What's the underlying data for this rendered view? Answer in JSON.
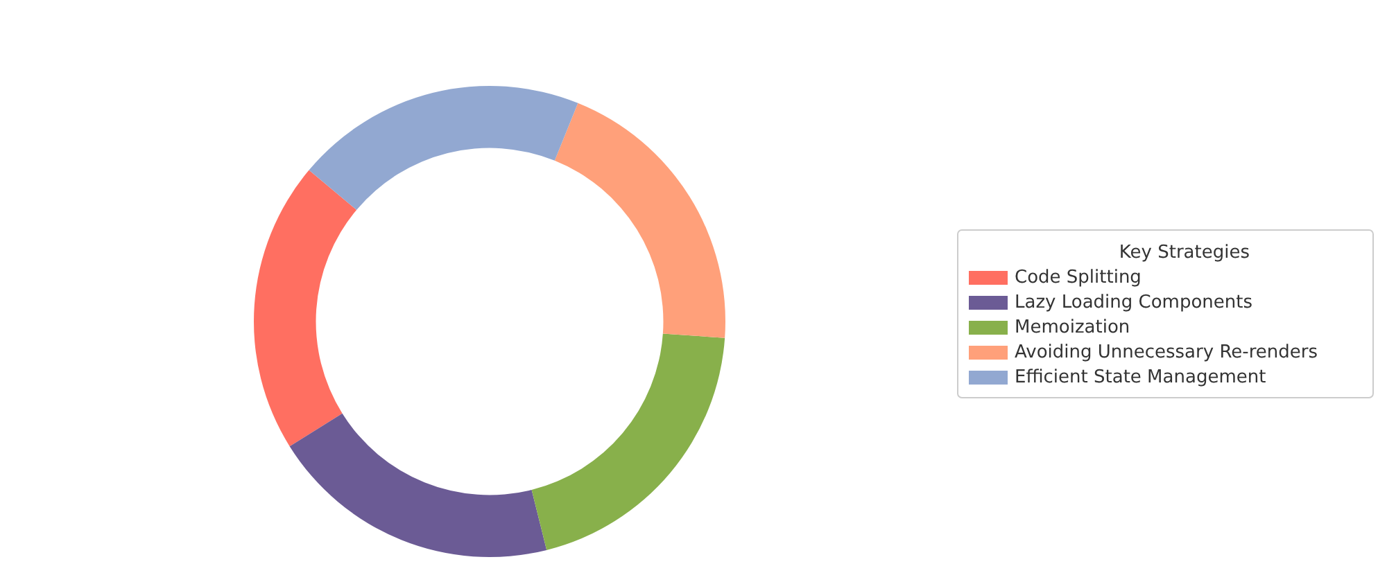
{
  "chart_data": {
    "type": "donut",
    "legend_title": "Key Strategies",
    "legend": "right",
    "categories": [
      "Code Splitting",
      "Lazy Loading Components",
      "Memoization",
      "Avoiding Unnecessary Re-renders",
      "Efficient State Management"
    ],
    "values": [
      20,
      20,
      20,
      20,
      20
    ],
    "colors": [
      "#ff6f61",
      "#6b5b95",
      "#88b04b",
      "#ffa07a",
      "#92a8d1"
    ]
  }
}
